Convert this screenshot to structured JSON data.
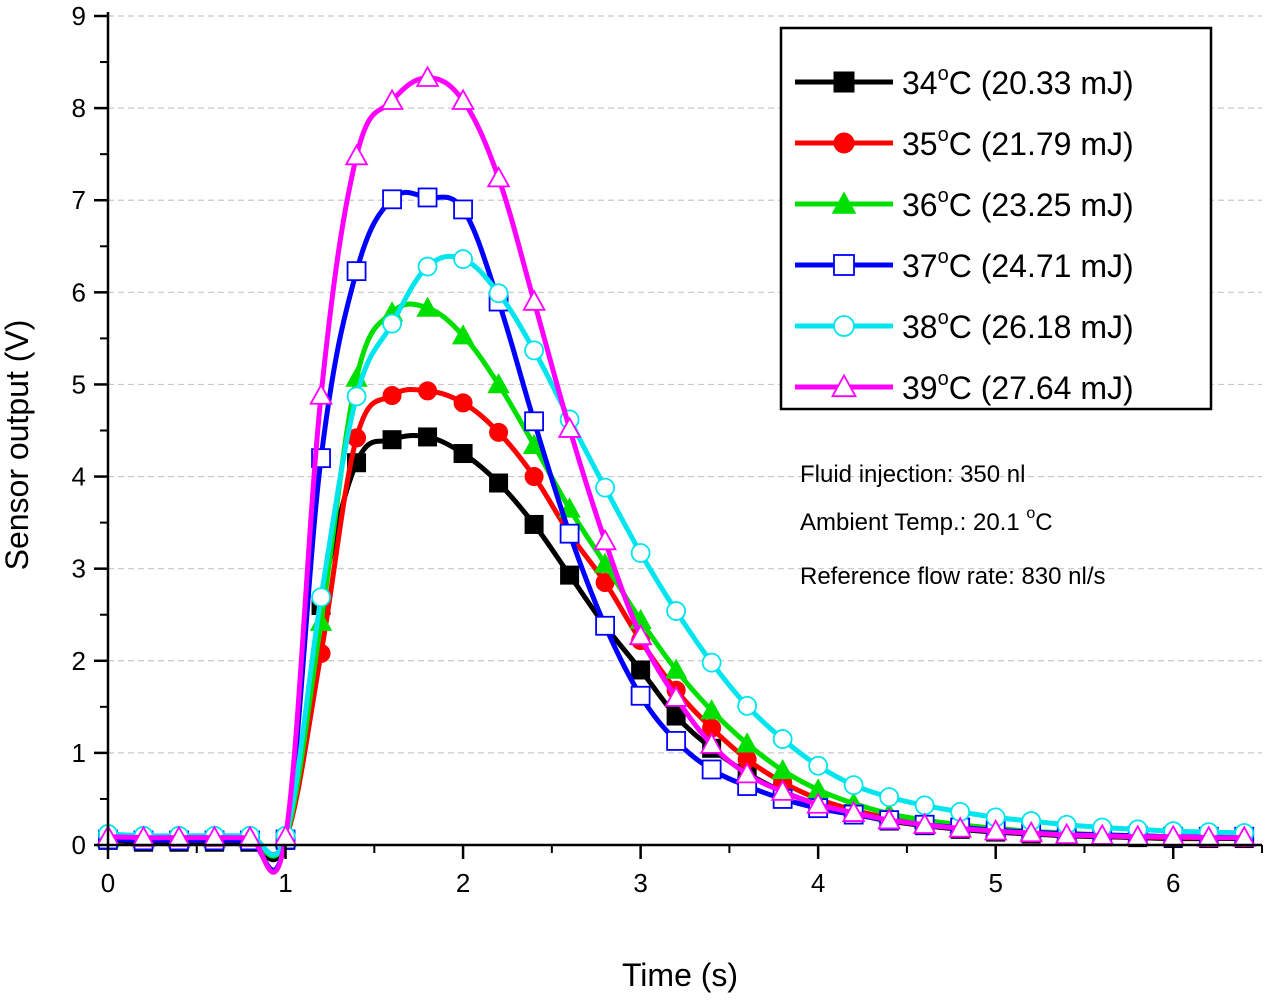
{
  "chart_data": {
    "type": "line",
    "title": "",
    "xlabel": "Time (s)",
    "ylabel": "Sensor output (V)",
    "xlim": [
      0,
      6.5
    ],
    "ylim": [
      0,
      9
    ],
    "x_ticks": [
      0,
      1,
      2,
      3,
      4,
      5,
      6
    ],
    "y_ticks": [
      0,
      1,
      2,
      3,
      4,
      5,
      6,
      7,
      8,
      9
    ],
    "grid": "horizontal dashed",
    "legend_position": "top-right",
    "x": [
      0,
      0.2,
      0.4,
      0.6,
      0.8,
      1.0,
      1.2,
      1.4,
      1.6,
      1.8,
      2.0,
      2.2,
      2.4,
      2.6,
      2.8,
      3.0,
      3.2,
      3.4,
      3.6,
      3.8,
      4.0,
      4.2,
      4.4,
      4.6,
      4.8,
      5.0,
      5.2,
      5.4,
      5.6,
      5.8,
      6.0,
      6.2,
      6.4
    ],
    "series": [
      {
        "legend": {
          "temp": "34",
          "deg": "o",
          "unit": "C",
          "energy": " (20.33 mJ)"
        },
        "color": "#000000",
        "marker": "square-filled",
        "values": [
          0.05,
          0.03,
          0.03,
          0.03,
          0.03,
          0.05,
          2.6,
          4.15,
          4.4,
          4.43,
          4.25,
          3.93,
          3.48,
          2.93,
          2.38,
          1.9,
          1.4,
          1.05,
          0.78,
          0.58,
          0.44,
          0.34,
          0.26,
          0.21,
          0.17,
          0.14,
          0.12,
          0.1,
          0.09,
          0.08,
          0.07,
          0.07,
          0.07
        ]
      },
      {
        "legend": {
          "temp": "35",
          "deg": "o",
          "unit": "C",
          "energy": " (21.79 mJ)"
        },
        "color": "#ff0000",
        "marker": "circle-filled",
        "values": [
          0.06,
          0.05,
          0.05,
          0.05,
          0.05,
          0.06,
          2.08,
          4.42,
          4.88,
          4.93,
          4.8,
          4.48,
          4.0,
          3.38,
          2.85,
          2.22,
          1.68,
          1.27,
          0.93,
          0.68,
          0.5,
          0.38,
          0.29,
          0.23,
          0.19,
          0.15,
          0.13,
          0.11,
          0.1,
          0.09,
          0.08,
          0.08,
          0.08
        ]
      },
      {
        "legend": {
          "temp": "36",
          "deg": "o",
          "unit": "C",
          "energy": " (23.25 mJ)"
        },
        "color": "#00e000",
        "marker": "triangle-filled",
        "values": [
          0.07,
          0.06,
          0.06,
          0.06,
          0.06,
          0.07,
          2.42,
          5.07,
          5.78,
          5.83,
          5.53,
          5.0,
          4.34,
          3.65,
          3.05,
          2.44,
          1.9,
          1.46,
          1.1,
          0.81,
          0.6,
          0.45,
          0.34,
          0.27,
          0.22,
          0.18,
          0.15,
          0.13,
          0.11,
          0.1,
          0.09,
          0.09,
          0.09
        ]
      },
      {
        "legend": {
          "temp": "37",
          "deg": "o",
          "unit": "C",
          "energy": " (24.71 mJ)"
        },
        "color": "#0000ff",
        "marker": "square-open",
        "values": [
          0.06,
          0.05,
          0.05,
          0.05,
          0.05,
          0.06,
          4.2,
          6.23,
          7.01,
          7.03,
          6.9,
          5.9,
          4.6,
          3.38,
          2.38,
          1.62,
          1.13,
          0.82,
          0.64,
          0.5,
          0.4,
          0.33,
          0.27,
          0.22,
          0.19,
          0.16,
          0.14,
          0.12,
          0.11,
          0.1,
          0.09,
          0.09,
          0.09
        ]
      },
      {
        "legend": {
          "temp": "38",
          "deg": "o",
          "unit": "C",
          "energy": " (26.18 mJ)"
        },
        "color": "#00e5ee",
        "marker": "circle-open",
        "values": [
          0.12,
          0.1,
          0.1,
          0.1,
          0.1,
          0.1,
          2.69,
          4.87,
          5.66,
          6.28,
          6.36,
          5.99,
          5.37,
          4.62,
          3.88,
          3.17,
          2.54,
          1.98,
          1.51,
          1.15,
          0.86,
          0.65,
          0.52,
          0.43,
          0.36,
          0.3,
          0.26,
          0.22,
          0.19,
          0.17,
          0.15,
          0.14,
          0.13
        ]
      },
      {
        "legend": {
          "temp": "39",
          "deg": "o",
          "unit": "C",
          "energy": " (27.64 mJ)"
        },
        "color": "#ff00ff",
        "marker": "triangle-open",
        "values": [
          0.09,
          0.08,
          0.08,
          0.08,
          0.08,
          0.09,
          4.88,
          7.48,
          8.08,
          8.33,
          8.08,
          7.24,
          5.9,
          4.52,
          3.3,
          2.27,
          1.6,
          1.09,
          0.77,
          0.58,
          0.44,
          0.35,
          0.27,
          0.22,
          0.18,
          0.15,
          0.13,
          0.11,
          0.1,
          0.09,
          0.09,
          0.08,
          0.08
        ]
      }
    ],
    "annotations": {
      "injection": "Fluid injection: 350 nl",
      "ambient_prefix": "Ambient Temp.: 20.1 ",
      "ambient_deg": "o",
      "ambient_unit": "C",
      "flow": "Reference flow rate: 830 nl/s"
    }
  }
}
